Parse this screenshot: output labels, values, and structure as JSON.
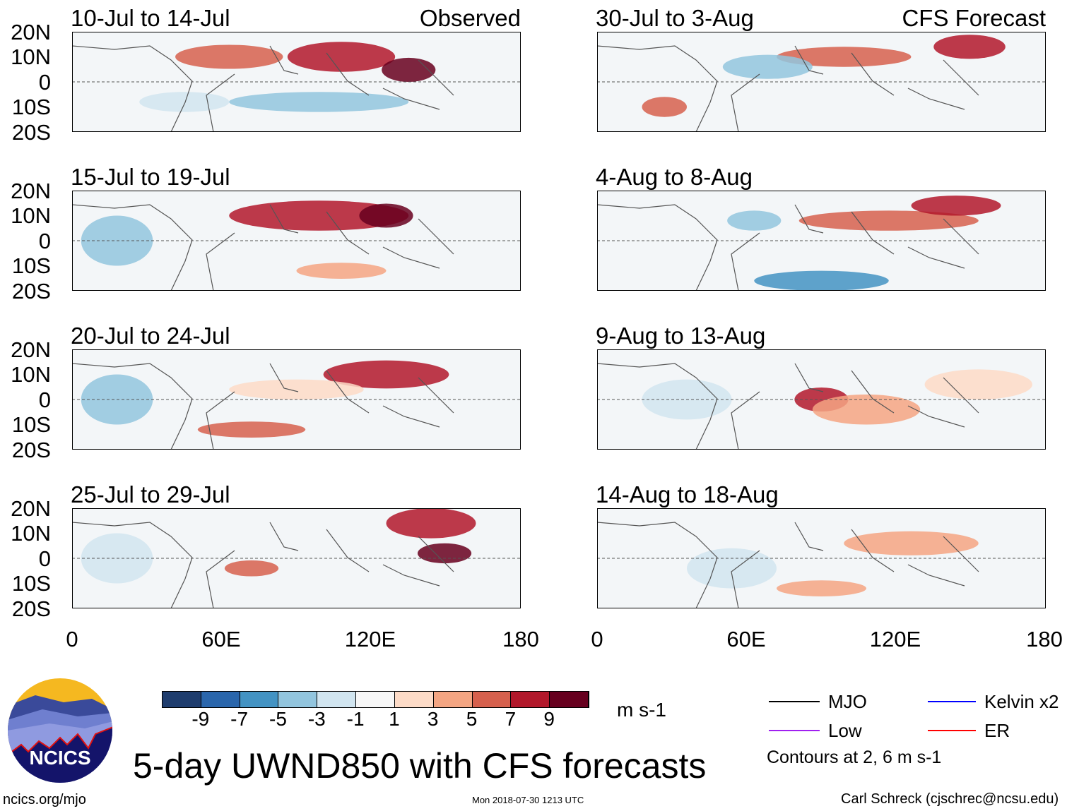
{
  "panels": [
    {
      "title": "10-Jul to 14-Jul",
      "tag": "Observed"
    },
    {
      "title": "15-Jul to 19-Jul",
      "tag": ""
    },
    {
      "title": "20-Jul to 24-Jul",
      "tag": ""
    },
    {
      "title": "25-Jul to 29-Jul",
      "tag": ""
    },
    {
      "title": "30-Jul to 3-Aug",
      "tag": "CFS Forecast"
    },
    {
      "title": "4-Aug to 8-Aug",
      "tag": ""
    },
    {
      "title": "9-Aug to 13-Aug",
      "tag": ""
    },
    {
      "title": "14-Aug to 18-Aug",
      "tag": ""
    }
  ],
  "y_ticks": [
    "20N",
    "10N",
    "0",
    "10S",
    "20S"
  ],
  "x_ticks": [
    "0",
    "60E",
    "120E",
    "180"
  ],
  "colorbar": {
    "colors": [
      "#1f3d6e",
      "#2a66ac",
      "#4393c3",
      "#92c5de",
      "#d1e5f0",
      "#f7f7f7",
      "#fddbc7",
      "#f4a582",
      "#d6604d",
      "#b2182b",
      "#67001f"
    ],
    "labels": [
      "-9",
      "-7",
      "-5",
      "-3",
      "-1",
      "1",
      "3",
      "5",
      "7",
      "9"
    ],
    "units": "m s-1"
  },
  "legend": {
    "items": [
      {
        "label": "MJO",
        "color": "#000000"
      },
      {
        "label": "Kelvin x2",
        "color": "#0000ff"
      },
      {
        "label": "Low",
        "color": "#a020f0"
      },
      {
        "label": "ER",
        "color": "#ff0000"
      }
    ],
    "note": "Contours at 2, 6 m s-1"
  },
  "title": "5-day UWND850 with CFS forecasts",
  "logo_text": "NCICS",
  "url": "ncics.org/mjo",
  "timestamp": "Mon 2018-07-30 1213 UTC",
  "credit": "Carl Schreck (cjschrec@ncsu.edu)"
}
